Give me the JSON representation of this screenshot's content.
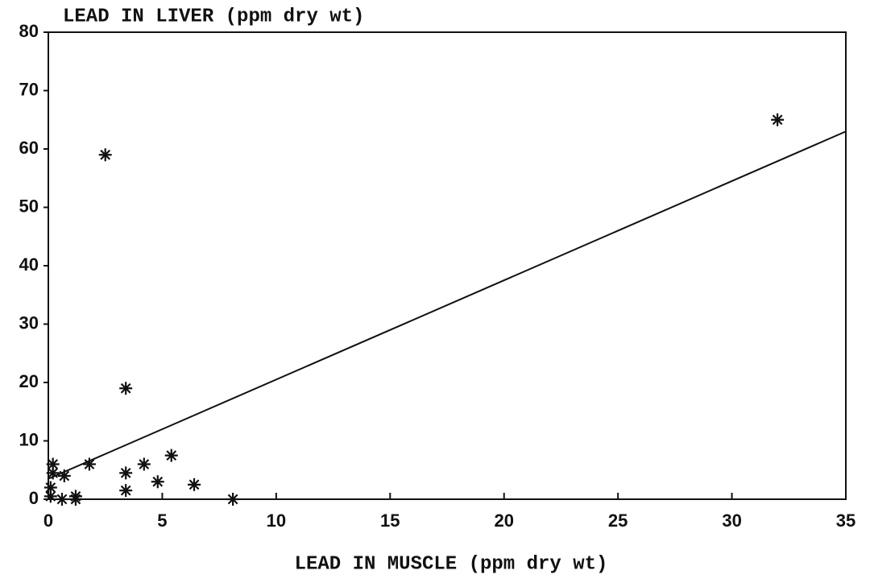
{
  "chart_data": {
    "type": "scatter",
    "y_label": "LEAD IN LIVER (ppm dry wt)",
    "x_label": "LEAD IN MUSCLE (ppm dry wt)",
    "x": [
      0.2,
      0.2,
      0.1,
      0.1,
      0.7,
      0.6,
      1.2,
      1.2,
      1.8,
      2.5,
      3.4,
      3.4,
      3.4,
      4.2,
      4.8,
      5.4,
      6.4,
      8.1,
      32
    ],
    "values": [
      6,
      4.5,
      2,
      0.5,
      4,
      0,
      0.5,
      0,
      6,
      59,
      19,
      4.5,
      1.5,
      6,
      3,
      7.5,
      2.5,
      0,
      65
    ],
    "color": "#111111",
    "fit_line": {
      "x": [
        0,
        35
      ],
      "y": [
        3.5,
        63
      ]
    },
    "xlim": [
      0,
      35
    ],
    "xticks": [
      0,
      5,
      10,
      15,
      20,
      25,
      30,
      35
    ],
    "ylim": [
      0,
      80
    ],
    "yticks": [
      0,
      10,
      20,
      30,
      40,
      50,
      60,
      70,
      80
    ]
  }
}
